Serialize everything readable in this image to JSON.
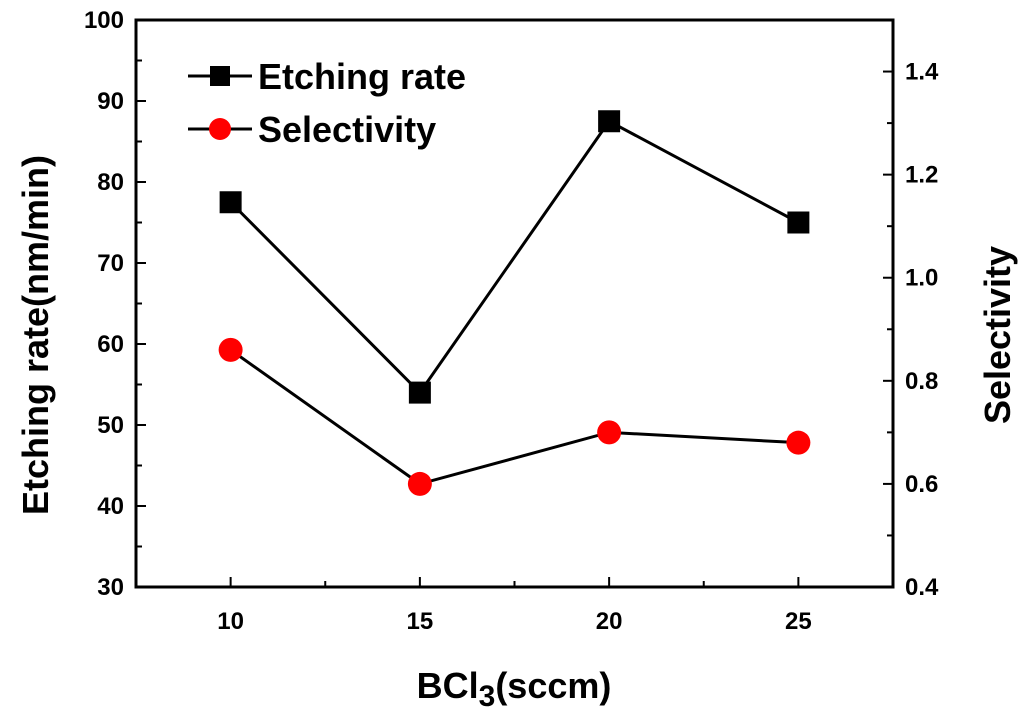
{
  "chart_data": {
    "type": "line",
    "x": [
      10,
      15,
      20,
      25
    ],
    "x_ticks": [
      "10",
      "15",
      "20",
      "25"
    ],
    "xlim": [
      7.5,
      27.5
    ],
    "xlabel_main": "BCl",
    "xlabel_sub": "3",
    "xlabel_suffix": "(sccm)",
    "y_left": {
      "label": "Etching rate(nm/min)",
      "ylim": [
        30,
        100
      ],
      "ticks": [
        "30",
        "40",
        "50",
        "60",
        "70",
        "80",
        "90",
        "100"
      ]
    },
    "y_right": {
      "label": "Selectivity",
      "ylim": [
        0.4,
        1.5
      ],
      "ticks": [
        "0.4",
        "0.6",
        "0.8",
        "1.0",
        "1.2",
        "1.4"
      ]
    },
    "series": [
      {
        "name": "Etching rate",
        "axis": "left",
        "values": [
          77.5,
          54,
          87.5,
          75
        ],
        "marker": "square",
        "color": "#000000"
      },
      {
        "name": "Selectivity",
        "axis": "right",
        "values": [
          0.86,
          0.6,
          0.7,
          0.68
        ],
        "marker": "circle",
        "color": "#ff0000"
      }
    ],
    "legend_position": "top-left",
    "grid": false
  }
}
